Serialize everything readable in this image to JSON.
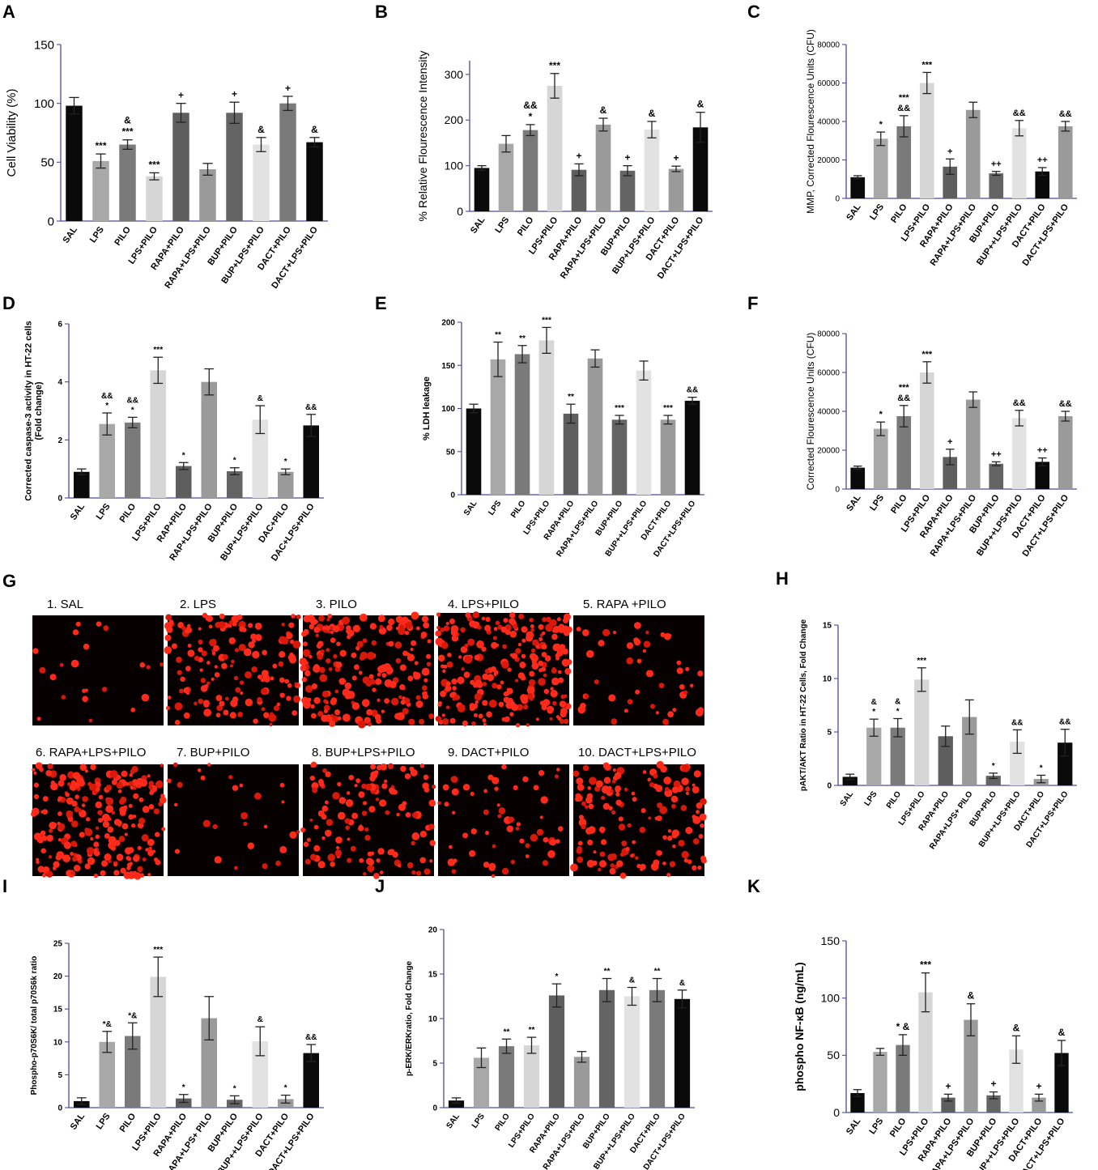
{
  "panel_letters": {
    "G": "G"
  },
  "micrographs": [
    {
      "label": "1. SAL",
      "density": 0.06
    },
    {
      "label": "2. LPS",
      "density": 0.55
    },
    {
      "label": "3. PILO",
      "density": 0.75
    },
    {
      "label": "4. LPS+PILO",
      "density": 0.95
    },
    {
      "label": "5. RAPA +PILO",
      "density": 0.15
    },
    {
      "label": "6. RAPA+LPS+PILO",
      "density": 0.85
    },
    {
      "label": "7. BUP+PILO",
      "density": 0.08
    },
    {
      "label": "8. BUP+LPS+PILO",
      "density": 0.45
    },
    {
      "label": "9. DACT+PILO",
      "density": 0.2
    },
    {
      "label": "10. DACT+LPS+PILO",
      "density": 0.55
    }
  ],
  "chart_data": [
    {
      "panel": "A",
      "type": "bar",
      "ylabel": "Cell Viability  (%)",
      "ylim": [
        0,
        150
      ],
      "yticks": [
        0,
        50,
        100,
        150
      ],
      "categories": [
        "SAL",
        "LPS",
        "PILO",
        "LPS+PILO",
        "RAPA+PILO",
        "RAPA+LPS+PILO",
        "BUP+PILO",
        "BUP+LPS+PILO",
        "DACT+PILO",
        "DACT+LPS+PILO"
      ],
      "values": [
        98,
        51,
        65,
        38,
        92,
        44,
        92,
        65,
        100,
        67
      ],
      "errors": [
        7,
        6,
        4,
        3,
        8,
        5,
        9,
        6,
        6,
        4
      ],
      "annotations": [
        "",
        "***",
        "&\n***",
        "***",
        "+",
        "",
        "+",
        "&",
        "+",
        "&"
      ],
      "colors": [
        "#0a0a0a",
        "#a8a8a8",
        "#7a7a7a",
        "#d6d6d6",
        "#5e5e5e",
        "#9a9a9a",
        "#646464",
        "#e2e2e2",
        "#7a7a7a",
        "#0a0a0a"
      ]
    },
    {
      "panel": "B",
      "type": "bar",
      "ylabel": "% Relative Flourescence Intensity",
      "ylim": [
        0,
        330
      ],
      "yticks": [
        0,
        100,
        200,
        300
      ],
      "categories": [
        "SAL",
        "LPS",
        "PILO",
        "LPS+PILO",
        "RAPA+PILO",
        "RAPA+LPS+PILO",
        "BUP+PILO",
        "BUP+LPS+PILO",
        "DACT+PILO",
        "DACT+LPS+PILO"
      ],
      "values": [
        95,
        148,
        178,
        275,
        91,
        190,
        89,
        179,
        93,
        184
      ],
      "errors": [
        5,
        18,
        12,
        27,
        13,
        14,
        11,
        18,
        6,
        33
      ],
      "annotations": [
        "",
        "",
        "&&\n*",
        "***",
        "+",
        "&",
        "+",
        "&",
        "+",
        "&"
      ],
      "colors": [
        "#0a0a0a",
        "#a8a8a8",
        "#7a7a7a",
        "#d6d6d6",
        "#5e5e5e",
        "#9a9a9a",
        "#646464",
        "#e2e2e2",
        "#9a9a9a",
        "#0a0a0a"
      ]
    },
    {
      "panel": "C",
      "type": "bar",
      "ylabel": "MMP, Corrected Flourescence Units (CFU)",
      "ylim": [
        0,
        80000
      ],
      "yticks": [
        0,
        20000,
        40000,
        60000,
        80000
      ],
      "categories": [
        "SAL",
        "LPS",
        "PILO",
        "LPS+PILO",
        "RAPA+PILO",
        "RAPA+LPS+PILO",
        "BUP+PILO",
        "BUP++LPS+PILO",
        "DACT+PILO",
        "DACT+LPS+PILO"
      ],
      "values": [
        11000,
        31000,
        37500,
        60000,
        16500,
        46000,
        13000,
        36500,
        14000,
        37500
      ],
      "errors": [
        800,
        3500,
        5500,
        5500,
        4000,
        4000,
        1000,
        4000,
        2000,
        2500
      ],
      "annotations": [
        "",
        "*",
        "***\n&&",
        "***",
        "+",
        "",
        "++",
        "&&",
        "++",
        "&&"
      ],
      "colors": [
        "#0a0a0a",
        "#a8a8a8",
        "#7a7a7a",
        "#d6d6d6",
        "#5e5e5e",
        "#9a9a9a",
        "#646464",
        "#e2e2e2",
        "#0a0a0a",
        "#9a9a9a"
      ]
    },
    {
      "panel": "D",
      "type": "bar",
      "ylabel": "Corrected caspase-3 activity in HT-22 cells\n(Fold change)",
      "ylim": [
        0,
        6
      ],
      "yticks": [
        0,
        2,
        4,
        6
      ],
      "categories": [
        "SAL",
        "LPS",
        "PILO",
        "LPS+PILO",
        "RAP+PILO",
        "RAP+LPS+PILO",
        "BUP+PILO",
        "BUP+LPS+PILO",
        "DAC+PILO",
        "DAC+LPS+PILO"
      ],
      "values": [
        0.9,
        2.55,
        2.6,
        4.4,
        1.1,
        4.0,
        0.92,
        2.7,
        0.9,
        2.5
      ],
      "errors": [
        0.1,
        0.38,
        0.18,
        0.45,
        0.12,
        0.45,
        0.12,
        0.48,
        0.1,
        0.38
      ],
      "annotations": [
        "",
        "&&\n*",
        "&&\n*",
        "***",
        "*",
        "",
        "*",
        "&",
        "*",
        "&&"
      ],
      "colors": [
        "#0a0a0a",
        "#a8a8a8",
        "#7a7a7a",
        "#d6d6d6",
        "#5e5e5e",
        "#9a9a9a",
        "#646464",
        "#e2e2e2",
        "#9a9a9a",
        "#0a0a0a"
      ]
    },
    {
      "panel": "E",
      "type": "bar",
      "ylabel": "% LDH leakage",
      "ylim": [
        0,
        200
      ],
      "yticks": [
        0,
        50,
        100,
        150,
        200
      ],
      "categories": [
        "SAL",
        "LPS",
        "PILO",
        "LPS+PILO",
        "RAPA+PILO",
        "RAPA+LPS+PILO",
        "BUP+PILO",
        "BUP++LPS+PILO",
        "DACT+PILO",
        "DACT+LPS+PILO"
      ],
      "values": [
        100,
        157,
        163,
        179,
        94,
        158,
        87,
        144,
        87,
        109
      ],
      "errors": [
        5,
        20,
        10,
        15,
        11,
        10,
        5,
        11,
        5,
        4
      ],
      "annotations": [
        "",
        "**",
        "**",
        "***",
        "**",
        "",
        "***",
        "",
        "***",
        "&&"
      ],
      "colors": [
        "#0a0a0a",
        "#a8a8a8",
        "#7a7a7a",
        "#d6d6d6",
        "#5e5e5e",
        "#9a9a9a",
        "#646464",
        "#e2e2e2",
        "#9a9a9a",
        "#0a0a0a"
      ]
    },
    {
      "panel": "F",
      "type": "bar",
      "ylabel": "Corrected Flourescence Units (CFU)",
      "ylim": [
        0,
        80000
      ],
      "yticks": [
        0,
        20000,
        40000,
        60000,
        80000
      ],
      "categories": [
        "SAL",
        "LPS",
        "PILO",
        "LPS+PILO",
        "RAPA+PILO",
        "RAPA+LPS+PILO",
        "BUP+PILO",
        "BUP++LPS+PILO",
        "DACT+PILO",
        "DACT+LPS+PILO"
      ],
      "values": [
        11000,
        31000,
        37500,
        60000,
        16500,
        46000,
        13000,
        36500,
        14000,
        37500
      ],
      "errors": [
        800,
        3500,
        5500,
        5500,
        4000,
        4000,
        1000,
        4000,
        2000,
        2500
      ],
      "annotations": [
        "",
        "*",
        "***\n&&",
        "***",
        "+",
        "",
        "++",
        "&&",
        "++",
        "&&"
      ],
      "colors": [
        "#0a0a0a",
        "#a8a8a8",
        "#7a7a7a",
        "#d6d6d6",
        "#5e5e5e",
        "#9a9a9a",
        "#646464",
        "#e2e2e2",
        "#0a0a0a",
        "#9a9a9a"
      ]
    },
    {
      "panel": "H",
      "type": "bar",
      "ylabel": "pAKT/AKT Ratio in HT-22 Cells, Fold Change",
      "ylim": [
        0,
        15
      ],
      "yticks": [
        0,
        5,
        10,
        15
      ],
      "categories": [
        "SAL",
        "LPS",
        "PILO",
        "LPS+PILO",
        "RAPA+PILO",
        "RAPA+LPS+ PILO",
        "BUP+PILO",
        "BUP++LPS+PILO",
        "DACT+PILO",
        "DACT+LPS+PILO"
      ],
      "values": [
        0.8,
        5.4,
        5.4,
        9.9,
        4.6,
        6.4,
        0.9,
        4.1,
        0.6,
        4.0
      ],
      "errors": [
        0.25,
        0.8,
        0.85,
        1.1,
        0.95,
        1.6,
        0.25,
        1.1,
        0.35,
        1.25
      ],
      "annotations": [
        "",
        "&\n*",
        "&\n*",
        "***",
        "",
        "",
        "*",
        "&&",
        "*",
        "&&"
      ],
      "colors": [
        "#0a0a0a",
        "#a8a8a8",
        "#7a7a7a",
        "#d6d6d6",
        "#5e5e5e",
        "#9a9a9a",
        "#646464",
        "#e2e2e2",
        "#9a9a9a",
        "#0a0a0a"
      ]
    },
    {
      "panel": "I",
      "type": "bar",
      "ylabel": "Phospho-p70S6K/ total p70S6k ratio",
      "ylim": [
        0,
        25
      ],
      "yticks": [
        0,
        5,
        10,
        15,
        20,
        25
      ],
      "categories": [
        "SAL",
        "LPS",
        "PILO",
        "LPS+PILO",
        "RAPA+PILO",
        "RAPA+LPS+ PILO",
        "BUP+PILO",
        "BUP++LPS+PILO",
        "DACT+PILO",
        "DACT+LPS+PILO"
      ],
      "values": [
        1.0,
        10.0,
        10.9,
        19.9,
        1.4,
        13.6,
        1.2,
        10.1,
        1.3,
        8.3
      ],
      "errors": [
        0.5,
        1.6,
        2.0,
        3.0,
        0.6,
        3.3,
        0.6,
        2.2,
        0.6,
        1.3
      ],
      "annotations": [
        "",
        "*&",
        "*&",
        "***",
        "*",
        "",
        "*",
        "&",
        "*",
        "&&"
      ],
      "colors": [
        "#0a0a0a",
        "#a8a8a8",
        "#7a7a7a",
        "#d6d6d6",
        "#5e5e5e",
        "#9a9a9a",
        "#646464",
        "#e2e2e2",
        "#9a9a9a",
        "#0a0a0a"
      ]
    },
    {
      "panel": "J",
      "type": "bar",
      "ylabel": "p-ERK/ERKratio, Fold Change",
      "ylim": [
        0,
        20
      ],
      "yticks": [
        0,
        5,
        10,
        15,
        20
      ],
      "categories": [
        "SAL",
        "LPS",
        "PILO",
        "LPS+PILO",
        "RAPA+PILO",
        "RAPA+LPS+PILO",
        "BUP+PILO",
        "BUP++LPS+PILO",
        "DACT+PILO",
        "DACT+LPS+PILO"
      ],
      "values": [
        0.8,
        5.6,
        6.9,
        7.0,
        12.6,
        5.7,
        13.2,
        12.5,
        13.2,
        12.2
      ],
      "errors": [
        0.3,
        1.1,
        0.8,
        0.9,
        1.3,
        0.6,
        1.3,
        1.0,
        1.3,
        1.0
      ],
      "annotations": [
        "",
        "",
        "**",
        "**",
        "*",
        "",
        "**",
        "&",
        "**",
        "&"
      ],
      "colors": [
        "#0a0a0a",
        "#a8a8a8",
        "#7a7a7a",
        "#d6d6d6",
        "#5e5e5e",
        "#9a9a9a",
        "#646464",
        "#e2e2e2",
        "#7a7a7a",
        "#0a0a0a"
      ]
    },
    {
      "panel": "K",
      "type": "bar",
      "ylabel": "phospho NF-κB (ng/mL)",
      "ylim": [
        0,
        150
      ],
      "yticks": [
        0,
        50,
        100,
        150
      ],
      "categories": [
        "SAL",
        "LPS",
        "PILO",
        "LPS+PILO",
        "RAPA+PILO",
        "RAPA+LPS+PILO",
        "BUP+PILO",
        "BUP++LPS+PILO",
        "DACT+PILO",
        "DACT+LPS+PILO"
      ],
      "values": [
        17,
        53,
        59,
        105,
        13,
        81,
        15,
        55,
        13,
        52
      ],
      "errors": [
        3,
        3,
        9,
        17,
        3,
        14,
        3,
        12,
        3,
        11
      ],
      "annotations": [
        "",
        "",
        "* &",
        "***",
        "+",
        "&",
        "+",
        "&",
        "+",
        "&"
      ],
      "colors": [
        "#0a0a0a",
        "#a8a8a8",
        "#7a7a7a",
        "#d6d6d6",
        "#5e5e5e",
        "#9a9a9a",
        "#646464",
        "#e2e2e2",
        "#9a9a9a",
        "#0a0a0a"
      ]
    }
  ]
}
